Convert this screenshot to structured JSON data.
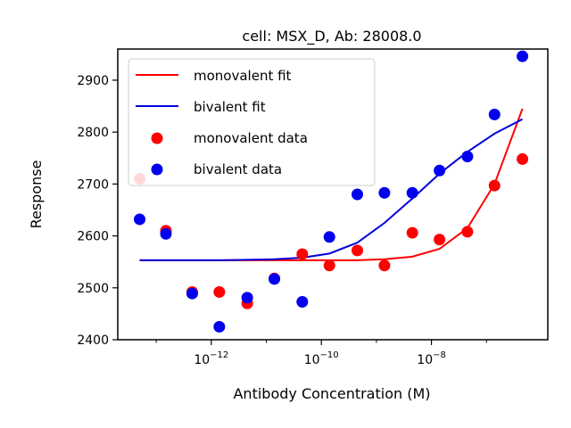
{
  "chart_data": {
    "type": "scatter",
    "title": "cell: MSX_D, Ab: 28008.0",
    "xlabel": "Antibody Concentration (M)",
    "ylabel": "Response",
    "x_scale": "log",
    "xlim": [
      2e-14,
      1.3e-06
    ],
    "ylim": [
      2400,
      2960
    ],
    "x_tick_labels": [
      {
        "label_base": "10",
        "label_exp": "−12",
        "value": 1e-12
      },
      {
        "label_base": "10",
        "label_exp": "−10",
        "value": 1e-10
      },
      {
        "label_base": "10",
        "label_exp": "−8",
        "value": 1e-08
      }
    ],
    "y_ticks": [
      2400,
      2500,
      2600,
      2700,
      2800,
      2900
    ],
    "legend": {
      "position": "upper-left",
      "entries": [
        {
          "label": "monovalent fit",
          "kind": "line",
          "color": "#ff0000"
        },
        {
          "label": "bivalent fit",
          "kind": "line",
          "color": "#0000dd"
        },
        {
          "label": "monovalent data",
          "kind": "marker",
          "color": "#ff0000"
        },
        {
          "label": "bivalent data",
          "kind": "marker",
          "color": "#0000ee"
        }
      ]
    },
    "series": [
      {
        "name": "monovalent data",
        "kind": "scatter",
        "color": "#ff0000",
        "x": [
          5e-14,
          1.5e-13,
          4.5e-13,
          1.4e-12,
          4.5e-12,
          1.4e-11,
          4.5e-11,
          1.4e-10,
          4.5e-10,
          1.4e-09,
          4.5e-09,
          1.4e-08,
          4.5e-08,
          1.4e-07,
          4.5e-07
        ],
        "y": [
          2710,
          2610,
          2492,
          2492,
          2470,
          2518,
          2565,
          2543,
          2572,
          2543,
          2606,
          2593,
          2608,
          2697,
          2748
        ]
      },
      {
        "name": "bivalent data",
        "kind": "scatter",
        "color": "#0000ee",
        "x": [
          5e-14,
          1.5e-13,
          4.5e-13,
          1.4e-12,
          4.5e-12,
          1.4e-11,
          4.5e-11,
          1.4e-10,
          4.5e-10,
          1.4e-09,
          4.5e-09,
          1.4e-08,
          4.5e-08,
          1.4e-07,
          4.5e-07
        ],
        "y": [
          2632,
          2604,
          2489,
          2425,
          2481,
          2517,
          2473,
          2598,
          2680,
          2683,
          2683,
          2726,
          2753,
          2834,
          2946
        ]
      },
      {
        "name": "monovalent fit",
        "kind": "line",
        "color": "#ff0000",
        "x": [
          5e-14,
          1.5e-13,
          4.5e-13,
          1.4e-12,
          4.5e-12,
          1.4e-11,
          4.5e-11,
          1.4e-10,
          4.5e-10,
          1.4e-09,
          4.5e-09,
          1.4e-08,
          4.5e-08,
          1.4e-07,
          4.5e-07
        ],
        "y": [
          2553,
          2553,
          2553,
          2553,
          2553,
          2553,
          2553,
          2553,
          2553,
          2555,
          2560,
          2575,
          2615,
          2700,
          2845
        ]
      },
      {
        "name": "bivalent fit",
        "kind": "line",
        "color": "#0000dd",
        "x": [
          5e-14,
          1.5e-13,
          4.5e-13,
          1.4e-12,
          4.5e-12,
          1.4e-11,
          4.5e-11,
          1.4e-10,
          4.5e-10,
          1.4e-09,
          4.5e-09,
          1.4e-08,
          4.5e-08,
          1.4e-07,
          4.5e-07
        ],
        "y": [
          2553,
          2553,
          2553,
          2553,
          2554,
          2555,
          2558,
          2566,
          2587,
          2625,
          2672,
          2720,
          2762,
          2797,
          2825
        ]
      }
    ]
  }
}
